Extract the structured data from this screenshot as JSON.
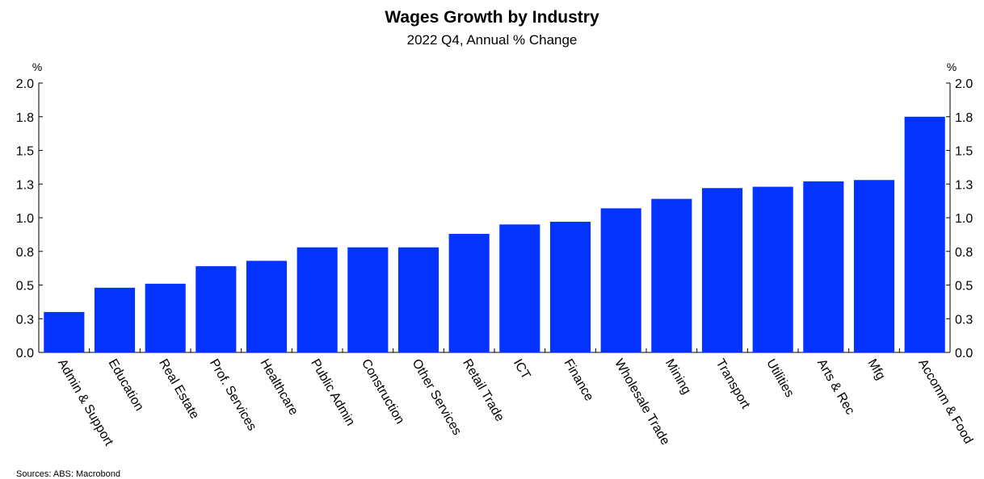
{
  "chart_data": {
    "type": "bar",
    "title": "Wages Growth by Industry",
    "subtitle": "2022 Q4, Annual % Change",
    "unit_left": "%",
    "unit_right": "%",
    "ylim": [
      0,
      2.0
    ],
    "yticks": [
      0.0,
      0.25,
      0.5,
      0.75,
      1.0,
      1.25,
      1.5,
      1.75,
      2.0
    ],
    "ytick_labels": [
      "0.0",
      "0.3",
      "0.5",
      "0.8",
      "1.0",
      "1.3",
      "1.5",
      "1.8",
      "2.0"
    ],
    "categories": [
      "Admin & Support",
      "Education",
      "Real Estate",
      "Prof. Services",
      "Healthcare",
      "Public Admin",
      "Construction",
      "Other Services",
      "Retail Trade",
      "ICT",
      "Finance",
      "Wholesale Trade",
      "Mining",
      "Transport",
      "Utilities",
      "Arts & Rec",
      "Mfg",
      "Accomm & Food"
    ],
    "values": [
      0.3,
      0.48,
      0.51,
      0.64,
      0.68,
      0.78,
      0.78,
      0.78,
      0.88,
      0.95,
      0.97,
      1.07,
      1.14,
      1.22,
      1.23,
      1.27,
      1.28,
      1.75
    ],
    "bar_color": "#0433ff",
    "grid": false,
    "legend": "none"
  },
  "source": "Sources: ABS: Macrobond"
}
